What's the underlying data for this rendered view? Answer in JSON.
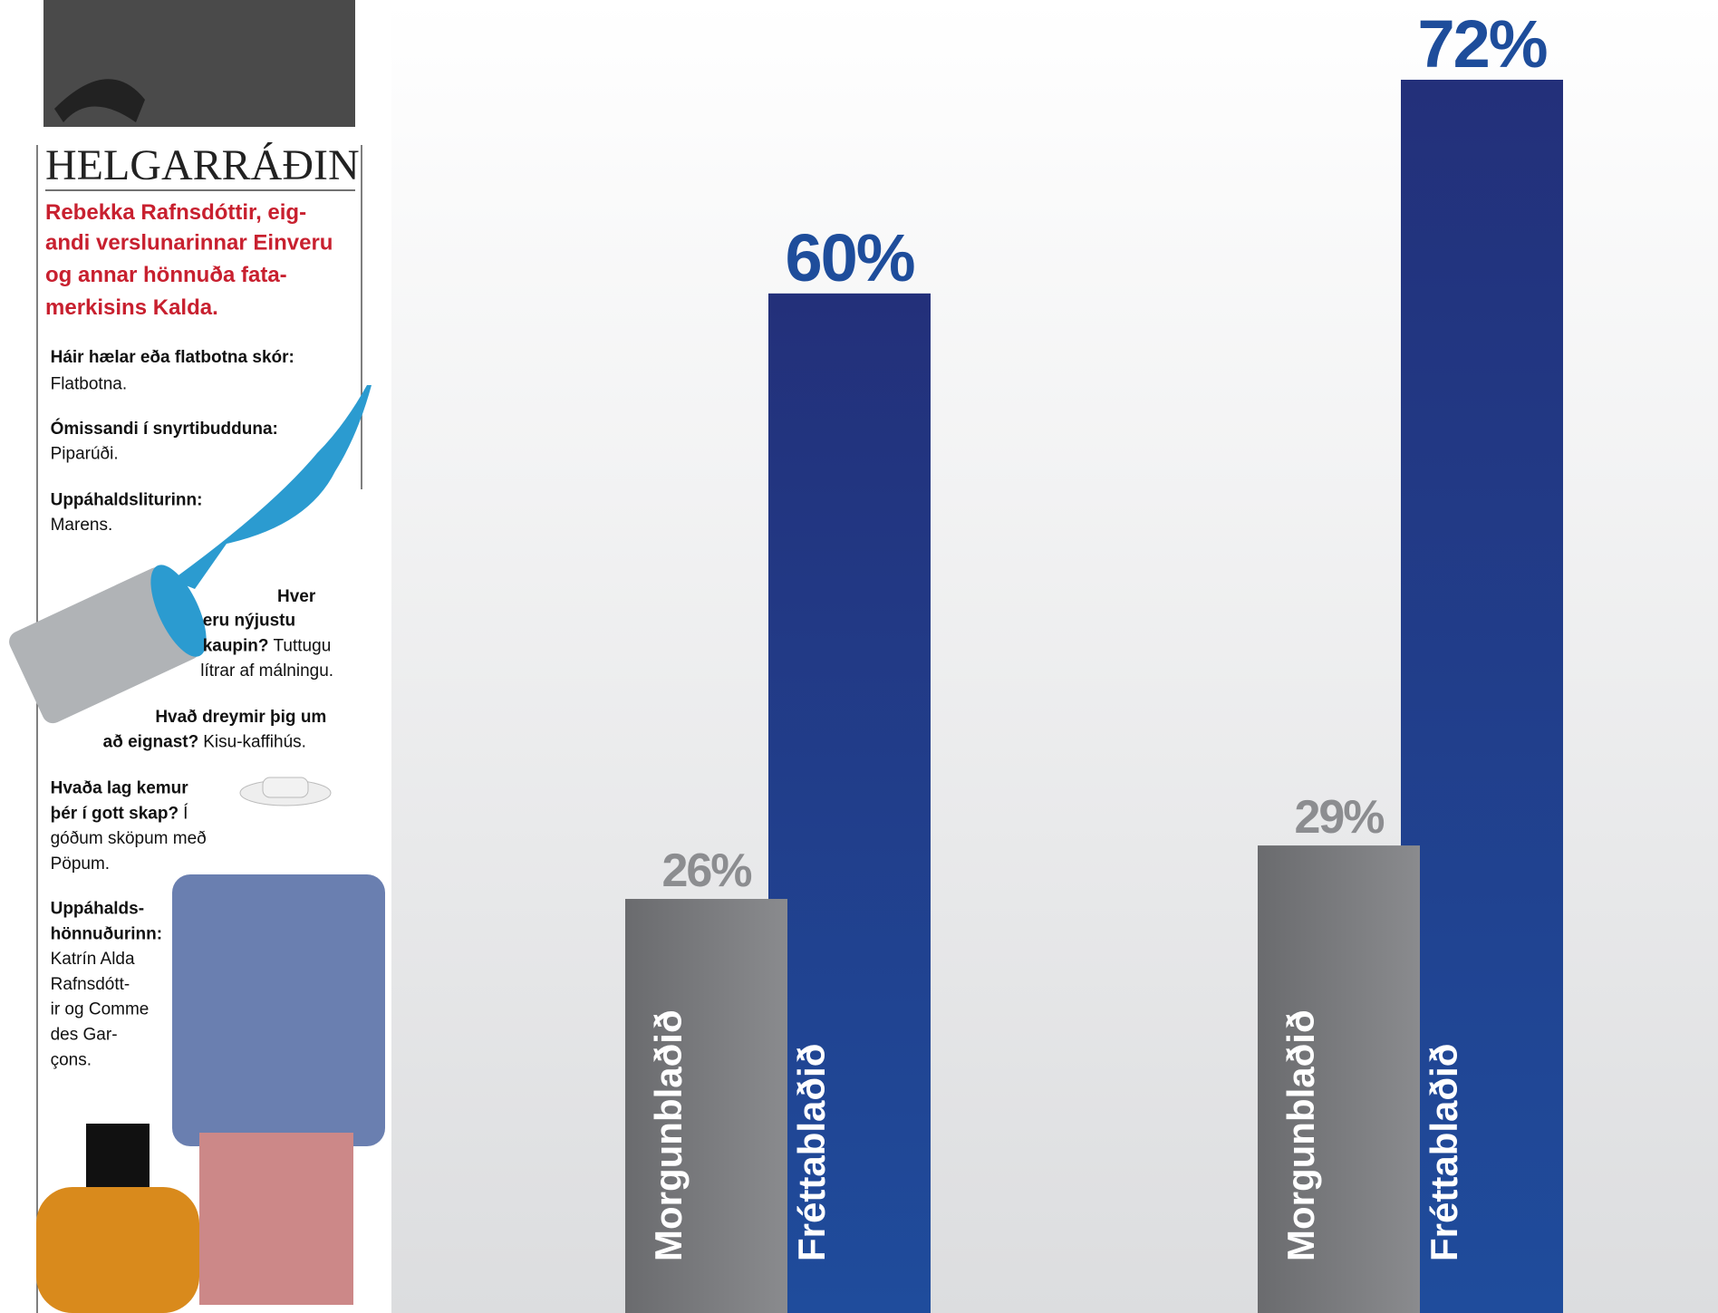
{
  "sidebar": {
    "title": "HELGARRÁÐIN",
    "intro": [
      "Rebekka Rafnsdóttir, eig-",
      "andi verslunarinnar Einveru",
      "og annar hönnuða fata-",
      "merkisins Kalda."
    ],
    "qa": [
      [
        [
          {
            "b": "Háir hælar eða flatbotna skór:"
          }
        ],
        [
          {
            "t": "Flatbotna."
          }
        ]
      ],
      [
        [
          {
            "b": "Ómissandi í snyrtibudduna:"
          }
        ],
        [
          {
            "t": "Piparúði."
          }
        ]
      ],
      [
        [
          {
            "b": "Uppáhaldsliturinn:"
          }
        ],
        [
          {
            "t": "Marens."
          }
        ]
      ],
      [
        [
          {
            "b": "Hver"
          }
        ],
        [
          {
            "b": "eru nýjustu"
          }
        ],
        [
          {
            "b": "kaupin?"
          },
          {
            "t": "Tuttugu"
          }
        ],
        [
          {
            "t": "lítrar af málningu."
          }
        ]
      ],
      [
        [
          {
            "b": "Hvað dreymir þig um"
          }
        ],
        [
          {
            "b": "að eignast?"
          },
          {
            "t": "Kisu-kaffihús."
          }
        ]
      ],
      [
        [
          {
            "b": "Hvaða lag kemur"
          }
        ],
        [
          {
            "b": "þér í gott skap?"
          },
          {
            "t": "Í"
          }
        ],
        [
          {
            "t": "góðum sköpum með"
          }
        ],
        [
          {
            "t": "Pöpum."
          }
        ]
      ],
      [
        [
          {
            "b": "Uppáhalds-"
          }
        ],
        [
          {
            "b": "hönnuðurinn:"
          }
        ],
        [
          {
            "t": "Katrín Alda"
          }
        ],
        [
          {
            "t": "Rafnsdótt-"
          }
        ],
        [
          {
            "t": "ir og Comme"
          }
        ],
        [
          {
            "t": "des Gar-"
          }
        ],
        [
          {
            "t": "çons."
          }
        ]
      ]
    ]
  },
  "chart_data": {
    "type": "bar",
    "categories": [
      null,
      null
    ],
    "series": [
      {
        "name": "Morgunblaðið",
        "color": "#8a8b8e",
        "values": [
          26,
          29
        ],
        "value_labels": [
          "26%",
          "29%"
        ]
      },
      {
        "name": "Fréttablaðið",
        "color": "#23307a",
        "values": [
          60,
          72
        ],
        "value_labels": [
          "60%",
          "72%"
        ]
      }
    ]
  }
}
